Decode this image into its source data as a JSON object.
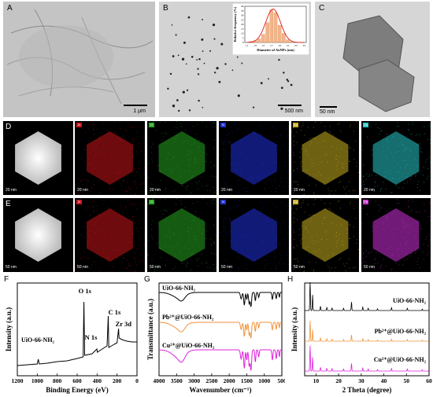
{
  "panels": {
    "A": {
      "label": "A",
      "scale": "1 μm"
    },
    "B": {
      "label": "B",
      "scale": "500 nm",
      "inset": {
        "xlabel": "Diameter of AuNPs (nm)",
        "ylabel": "Relative frequency (%)",
        "xticks": [
          "11",
          "13",
          "15",
          "17",
          "19",
          "21",
          "23",
          "25"
        ],
        "yticks": [
          "0",
          "5",
          "10",
          "15",
          "20",
          "25",
          "30",
          "35",
          "40"
        ]
      }
    },
    "C": {
      "label": "C",
      "scale": "50 nm"
    },
    "D": {
      "label": "D",
      "scales": [
        "20 nm",
        "20 nm",
        "20 nm",
        "20 nm",
        "20 nm",
        "20 nm"
      ],
      "tags": [
        "",
        "Zr",
        "O",
        "N",
        "Au",
        "Cu"
      ]
    },
    "E": {
      "label": "E",
      "scales": [
        "50 nm",
        "50 nm",
        "50 nm",
        "50 nm",
        "50 nm",
        "50 nm"
      ],
      "tags": [
        "",
        "Zr",
        "O",
        "N",
        "Au",
        "Pb"
      ]
    },
    "F": {
      "label": "F"
    },
    "G": {
      "label": "G"
    },
    "H": {
      "label": "H"
    }
  },
  "colors": {
    "zr": "#c8141a",
    "o": "#26a820",
    "n": "#2030d8",
    "au": "#c8b020",
    "cu": "#28c8c8",
    "pb": "#d030d8"
  },
  "chart_data": [
    {
      "type": "bar",
      "panel": "B-inset",
      "title": "",
      "xlabel": "Diameter of AuNPs (nm)",
      "ylabel": "Relative frequency (%)",
      "categories": [
        "11",
        "12",
        "13",
        "14",
        "15",
        "16",
        "17",
        "18",
        "19",
        "20",
        "21",
        "22",
        "23",
        "24",
        "25"
      ],
      "values": [
        0,
        1,
        2,
        4,
        9,
        22,
        36,
        33,
        19,
        10,
        3,
        1,
        0,
        0,
        0
      ],
      "ylim": [
        0,
        40
      ],
      "fit": "gaussian"
    },
    {
      "type": "line",
      "panel": "F",
      "xlabel": "Binding Energy (eV)",
      "ylabel": "Intensity (a.u.)",
      "xticks": [
        "1200",
        "1000",
        "800",
        "600",
        "400",
        "200",
        "0"
      ],
      "xlim": [
        1200,
        0
      ],
      "series": [
        {
          "name": "UiO-66-NH₂"
        }
      ],
      "annotations": [
        "O 1s",
        "C 1s",
        "N 1s",
        "Zr 3d"
      ]
    },
    {
      "type": "line",
      "panel": "G",
      "xlabel": "Wavenumber (cm⁻¹)",
      "ylabel": "Transmittance (a.u.)",
      "xticks": [
        "4000",
        "3500",
        "3000",
        "2500",
        "2000",
        "1500",
        "1000",
        "500"
      ],
      "xlim": [
        4000,
        500
      ],
      "series": [
        {
          "name": "UiO-66-NH₂",
          "color": "#000000"
        },
        {
          "name": "Pb²⁺@UiO-66-NH₂",
          "color": "#f0923a"
        },
        {
          "name": "Cu²⁺@UiO-66-NH₂",
          "color": "#e020e0"
        }
      ]
    },
    {
      "type": "line",
      "panel": "H",
      "xlabel": "2 Theta (degree)",
      "ylabel": "Intensity (a.u.)",
      "xticks": [
        "10",
        "20",
        "30",
        "40",
        "50",
        "60"
      ],
      "xlim": [
        5,
        60
      ],
      "series": [
        {
          "name": "UiO-66-NH₂",
          "color": "#000000"
        },
        {
          "name": "Pb²⁺@UiO-66-NH₂",
          "color": "#f0923a"
        },
        {
          "name": "Cu²⁺@UiO-66-NH₂",
          "color": "#e020e0"
        }
      ]
    }
  ]
}
